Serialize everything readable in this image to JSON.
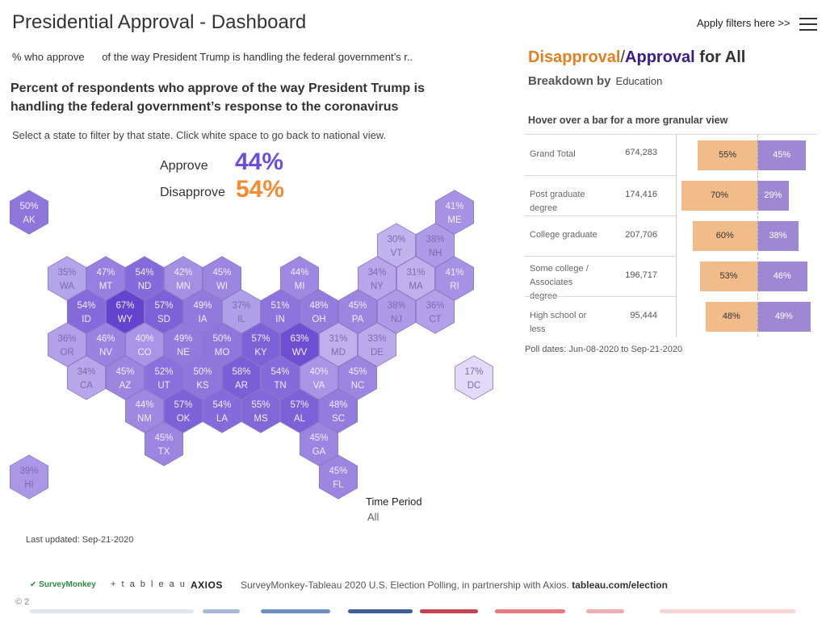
{
  "header": {
    "title": "Presidential Approval - Dashboard",
    "filters_link": "Apply filters here >>"
  },
  "question": {
    "measure": "% who approve",
    "text": "of the way President Trump is handling the federal government’s r.."
  },
  "subtitle": "Percent of respondents who approve of the way President Trump is handling the federal government’s response to the coronavirus",
  "instruction": "Select a state to filter by that state. Click white space to go back to national view.",
  "national": {
    "approve_label": "Approve",
    "approve_value": "44%",
    "disapprove_label": "Disapprove",
    "disapprove_value": "54%"
  },
  "colors": {
    "approve": "#6a4ee0",
    "disapprove": "#f58a2e",
    "approval_dark": "#3b1a8f",
    "disapproval_text": "#e67e22",
    "bar_disapprove": "#f2bb8a",
    "bar_approve": "#9f88d3"
  },
  "states": [
    {
      "abbr": "AK",
      "pct": 50,
      "label": "50%"
    },
    {
      "abbr": "ME",
      "pct": 41,
      "label": "41%"
    },
    {
      "abbr": "VT",
      "pct": 30,
      "label": "30%"
    },
    {
      "abbr": "NH",
      "pct": 38,
      "label": "38%"
    },
    {
      "abbr": "WA",
      "pct": 35,
      "label": "35%"
    },
    {
      "abbr": "MT",
      "pct": 47,
      "label": "47%"
    },
    {
      "abbr": "ND",
      "pct": 54,
      "label": "54%"
    },
    {
      "abbr": "MN",
      "pct": 42,
      "label": "42%"
    },
    {
      "abbr": "WI",
      "pct": 45,
      "label": "45%"
    },
    {
      "abbr": "MI",
      "pct": 44,
      "label": "44%"
    },
    {
      "abbr": "NY",
      "pct": 34,
      "label": "34%"
    },
    {
      "abbr": "MA",
      "pct": 31,
      "label": "31%"
    },
    {
      "abbr": "RI",
      "pct": 41,
      "label": "41%"
    },
    {
      "abbr": "ID",
      "pct": 54,
      "label": "54%"
    },
    {
      "abbr": "WY",
      "pct": 67,
      "label": "67%"
    },
    {
      "abbr": "SD",
      "pct": 57,
      "label": "57%"
    },
    {
      "abbr": "IA",
      "pct": 49,
      "label": "49%"
    },
    {
      "abbr": "IL",
      "pct": 37,
      "label": "37%"
    },
    {
      "abbr": "IN",
      "pct": 51,
      "label": "51%"
    },
    {
      "abbr": "OH",
      "pct": 48,
      "label": "48%"
    },
    {
      "abbr": "PA",
      "pct": 45,
      "label": "45%"
    },
    {
      "abbr": "NJ",
      "pct": 38,
      "label": "38%"
    },
    {
      "abbr": "CT",
      "pct": 36,
      "label": "36%"
    },
    {
      "abbr": "OR",
      "pct": 36,
      "label": "36%"
    },
    {
      "abbr": "NV",
      "pct": 46,
      "label": "46%"
    },
    {
      "abbr": "CO",
      "pct": 40,
      "label": "40%"
    },
    {
      "abbr": "NE",
      "pct": 49,
      "label": "49%"
    },
    {
      "abbr": "MO",
      "pct": 50,
      "label": "50%"
    },
    {
      "abbr": "KY",
      "pct": 57,
      "label": "57%"
    },
    {
      "abbr": "WV",
      "pct": 63,
      "label": "63%"
    },
    {
      "abbr": "MD",
      "pct": 31,
      "label": "31%"
    },
    {
      "abbr": "DE",
      "pct": 33,
      "label": "33%"
    },
    {
      "abbr": "CA",
      "pct": 34,
      "label": "34%"
    },
    {
      "abbr": "AZ",
      "pct": 45,
      "label": "45%"
    },
    {
      "abbr": "UT",
      "pct": 52,
      "label": "52%"
    },
    {
      "abbr": "KS",
      "pct": 50,
      "label": "50%"
    },
    {
      "abbr": "AR",
      "pct": 58,
      "label": "58%"
    },
    {
      "abbr": "TN",
      "pct": 54,
      "label": "54%"
    },
    {
      "abbr": "VA",
      "pct": 40,
      "label": "40%"
    },
    {
      "abbr": "NC",
      "pct": 45,
      "label": "45%"
    },
    {
      "abbr": "DC",
      "pct": 17,
      "label": "17%"
    },
    {
      "abbr": "NM",
      "pct": 44,
      "label": "44%"
    },
    {
      "abbr": "OK",
      "pct": 57,
      "label": "57%"
    },
    {
      "abbr": "LA",
      "pct": 54,
      "label": "54%"
    },
    {
      "abbr": "MS",
      "pct": 55,
      "label": "55%"
    },
    {
      "abbr": "AL",
      "pct": 57,
      "label": "57%"
    },
    {
      "abbr": "SC",
      "pct": 48,
      "label": "48%"
    },
    {
      "abbr": "TX",
      "pct": 45,
      "label": "45%"
    },
    {
      "abbr": "GA",
      "pct": 45,
      "label": "45%"
    },
    {
      "abbr": "HI",
      "pct": 39,
      "label": "39%"
    },
    {
      "abbr": "FL",
      "pct": 45,
      "label": "45%"
    }
  ],
  "time_period": {
    "label": "Time Period",
    "value": "All"
  },
  "last_updated": "Last updated: Sep-21-2020",
  "breakdown": {
    "head_disapproval": "Disapproval",
    "head_slash": "/",
    "head_approval": "Approval",
    "head_for": "for All",
    "breakdown_by_label": "Breakdown by",
    "breakdown_by_value": "Education",
    "hover_hint": "Hover over a bar for a more granular view",
    "rows": [
      {
        "label": "Grand Total",
        "count": "674,283",
        "disapprove": 55,
        "approve": 45,
        "dis_label": "55%",
        "app_label": "45%"
      },
      {
        "label": "Post graduate degree",
        "count": "174,416",
        "disapprove": 70,
        "approve": 29,
        "dis_label": "70%",
        "app_label": "29%"
      },
      {
        "label": "College graduate",
        "count": "207,706",
        "disapprove": 60,
        "approve": 38,
        "dis_label": "60%",
        "app_label": "38%"
      },
      {
        "label": "Some college / Associates degree",
        "count": "196,717",
        "disapprove": 53,
        "approve": 46,
        "dis_label": "53%",
        "app_label": "46%"
      },
      {
        "label": "High school or less",
        "count": "95,444",
        "disapprove": 48,
        "approve": 49,
        "dis_label": "48%",
        "app_label": "49%"
      }
    ],
    "poll_dates": "Poll dates: Jun-08-2020 to Sep-21-2020"
  },
  "footer": {
    "logo_surveymonkey": "SurveyMonkey",
    "logo_tableau": "+ t a b l e a u",
    "logo_axios": "AXIOS",
    "text": "SurveyMonkey-Tableau 2020 U.S. Election Polling, in partnership with Axios.",
    "link": "tableau.com/election",
    "copyright": "© 2",
    "stripe_colors": [
      "#dfe6f0",
      "#a6b9d6",
      "#6f8fbf",
      "#3e6096",
      "#c54450",
      "#e77b7f",
      "#efaeb0",
      "#f6d3d5"
    ]
  }
}
